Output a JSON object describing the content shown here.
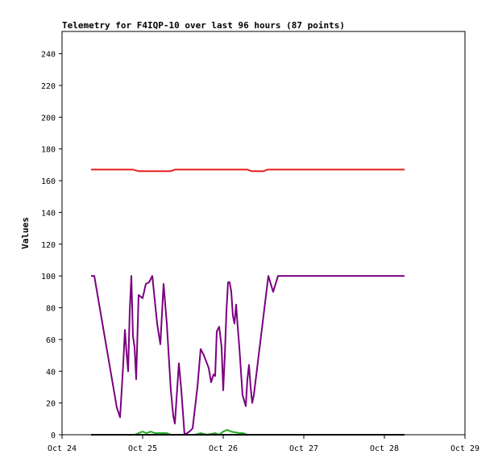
{
  "chart_data": {
    "type": "line",
    "title": "Telemetry for F4IQP-10 over last 96 hours (87 points)",
    "xlabel": "",
    "ylabel": "Values",
    "xlim": [
      0,
      5
    ],
    "ylim": [
      0,
      254
    ],
    "x_ticks": [
      {
        "value": 0,
        "label": "Oct 24"
      },
      {
        "value": 1,
        "label": "Oct 25"
      },
      {
        "value": 2,
        "label": "Oct 26"
      },
      {
        "value": 3,
        "label": "Oct 27"
      },
      {
        "value": 4,
        "label": "Oct 28"
      },
      {
        "value": 5,
        "label": "Oct 29"
      }
    ],
    "y_ticks": [
      0,
      20,
      40,
      60,
      80,
      100,
      120,
      140,
      160,
      180,
      200,
      220,
      240
    ],
    "grid": false,
    "legend": "none",
    "series": [
      {
        "color": "#e8211a",
        "points": [
          [
            0.36,
            167
          ],
          [
            0.88,
            167
          ],
          [
            0.95,
            166
          ],
          [
            1.35,
            166
          ],
          [
            1.4,
            167
          ],
          [
            2.3,
            167
          ],
          [
            2.35,
            166
          ],
          [
            2.5,
            166
          ],
          [
            2.55,
            167
          ],
          [
            4.25,
            167
          ]
        ]
      },
      {
        "color": "#7a0080",
        "points": [
          [
            0.36,
            100
          ],
          [
            0.4,
            100
          ],
          [
            0.68,
            17
          ],
          [
            0.72,
            11
          ],
          [
            0.76,
            45
          ],
          [
            0.78,
            66
          ],
          [
            0.8,
            52
          ],
          [
            0.82,
            40
          ],
          [
            0.84,
            78
          ],
          [
            0.86,
            100
          ],
          [
            0.88,
            62
          ],
          [
            0.9,
            55
          ],
          [
            0.92,
            35
          ],
          [
            0.95,
            88
          ],
          [
            1.0,
            86
          ],
          [
            1.04,
            95
          ],
          [
            1.08,
            96
          ],
          [
            1.12,
            100
          ],
          [
            1.18,
            70
          ],
          [
            1.22,
            57
          ],
          [
            1.26,
            95
          ],
          [
            1.3,
            70
          ],
          [
            1.35,
            28
          ],
          [
            1.38,
            12
          ],
          [
            1.4,
            7
          ],
          [
            1.45,
            45
          ],
          [
            1.48,
            28
          ],
          [
            1.52,
            0
          ],
          [
            1.58,
            2
          ],
          [
            1.62,
            4
          ],
          [
            1.68,
            30
          ],
          [
            1.72,
            54
          ],
          [
            1.76,
            50
          ],
          [
            1.82,
            42
          ],
          [
            1.85,
            33
          ],
          [
            1.88,
            38
          ],
          [
            1.9,
            37
          ],
          [
            1.92,
            65
          ],
          [
            1.95,
            68
          ],
          [
            1.98,
            55
          ],
          [
            2.0,
            28
          ],
          [
            2.02,
            50
          ],
          [
            2.04,
            78
          ],
          [
            2.06,
            96
          ],
          [
            2.08,
            96
          ],
          [
            2.1,
            90
          ],
          [
            2.12,
            75
          ],
          [
            2.14,
            70
          ],
          [
            2.16,
            82
          ],
          [
            2.18,
            68
          ],
          [
            2.2,
            55
          ],
          [
            2.22,
            40
          ],
          [
            2.24,
            25
          ],
          [
            2.28,
            18
          ],
          [
            2.3,
            35
          ],
          [
            2.32,
            44
          ],
          [
            2.34,
            30
          ],
          [
            2.36,
            20
          ],
          [
            2.38,
            25
          ],
          [
            2.44,
            50
          ],
          [
            2.5,
            75
          ],
          [
            2.56,
            100
          ],
          [
            2.62,
            90
          ],
          [
            2.68,
            100
          ],
          [
            4.25,
            100
          ]
        ]
      },
      {
        "color": "#22aa22",
        "points": [
          [
            0.36,
            0
          ],
          [
            0.9,
            0
          ],
          [
            0.95,
            1
          ],
          [
            1.0,
            2
          ],
          [
            1.05,
            1
          ],
          [
            1.1,
            2
          ],
          [
            1.15,
            1
          ],
          [
            1.3,
            1
          ],
          [
            1.35,
            0
          ],
          [
            1.65,
            0
          ],
          [
            1.72,
            1
          ],
          [
            1.8,
            0
          ],
          [
            1.9,
            1
          ],
          [
            1.95,
            0
          ],
          [
            2.0,
            2
          ],
          [
            2.05,
            3
          ],
          [
            2.1,
            2
          ],
          [
            2.2,
            1
          ],
          [
            2.25,
            1
          ],
          [
            2.3,
            0
          ],
          [
            4.25,
            0
          ]
        ]
      },
      {
        "color": "#000000",
        "points": [
          [
            0.36,
            0
          ],
          [
            4.25,
            0
          ]
        ]
      }
    ]
  }
}
